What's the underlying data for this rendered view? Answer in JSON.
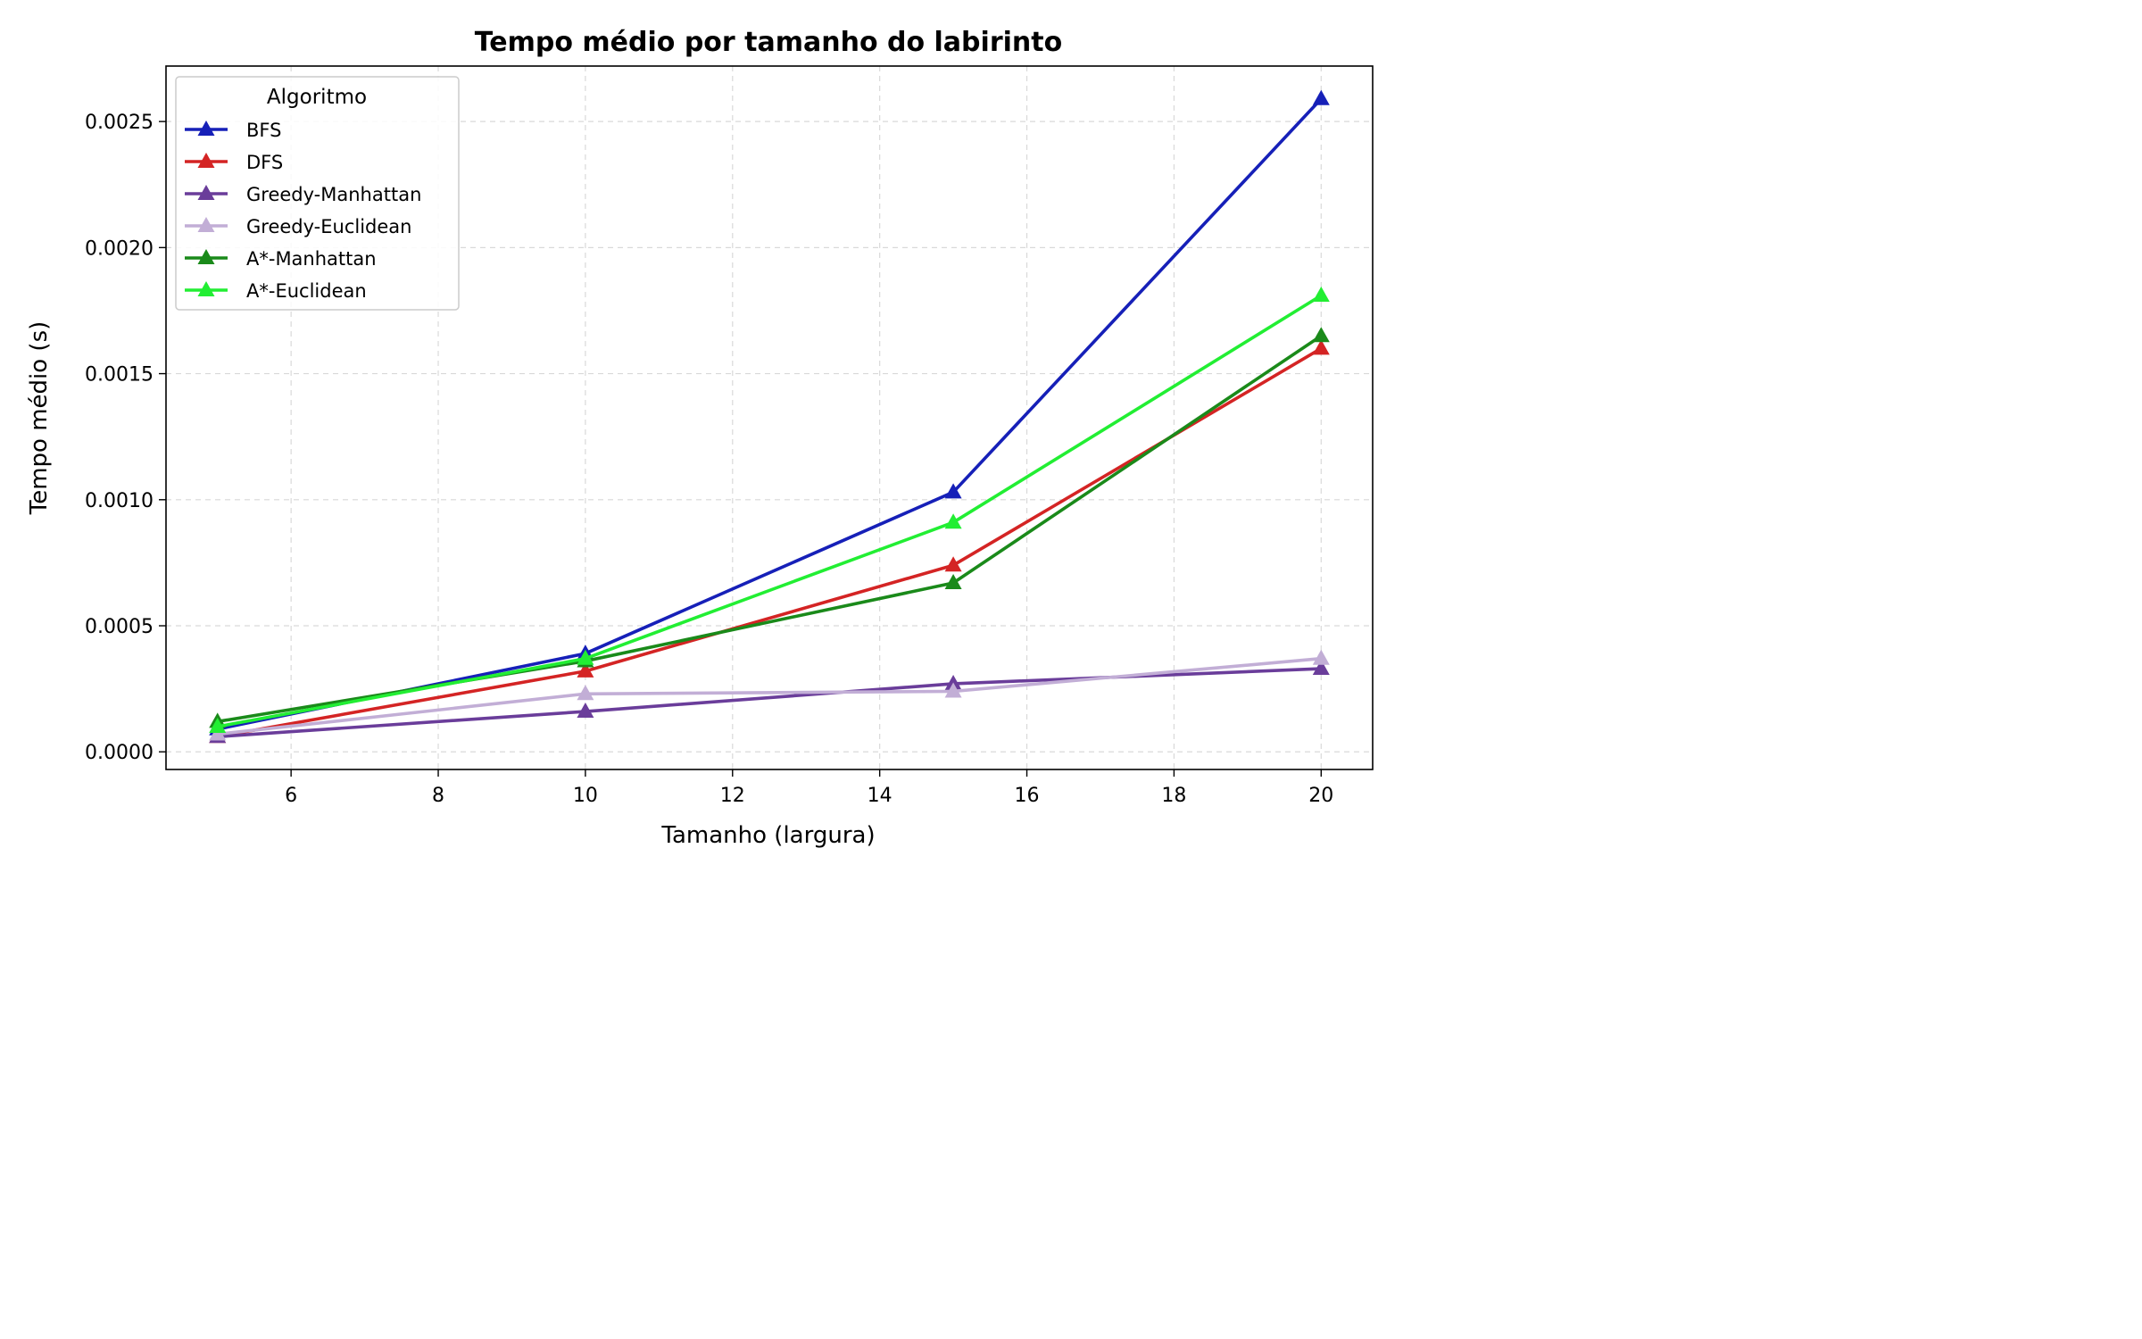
{
  "chart_data": {
    "type": "line",
    "title": "Tempo médio por tamanho do labirinto",
    "xlabel": "Tamanho (largura)",
    "ylabel": "Tempo médio (s)",
    "x": [
      5,
      10,
      15,
      20
    ],
    "xlim": [
      4.3,
      20.7
    ],
    "ylim": [
      -7e-05,
      0.00272
    ],
    "xticks": [
      6,
      8,
      10,
      12,
      14,
      16,
      18,
      20
    ],
    "xtick_labels": [
      "6",
      "8",
      "10",
      "12",
      "14",
      "16",
      "18",
      "20"
    ],
    "yticks": [
      0,
      0.0005,
      0.001,
      0.0015,
      0.002,
      0.0025
    ],
    "ytick_labels": [
      "0.0000",
      "0.0005",
      "0.0010",
      "0.0015",
      "0.0020",
      "0.0025"
    ],
    "grid": true,
    "legend": {
      "title": "Algoritmo",
      "position": "top-left"
    },
    "series": [
      {
        "name": "BFS",
        "color": "#1620b8",
        "values": [
          9e-05,
          0.00039,
          0.00103,
          0.00259
        ]
      },
      {
        "name": "DFS",
        "color": "#d42424",
        "values": [
          6e-05,
          0.00032,
          0.00074,
          0.0016
        ]
      },
      {
        "name": "Greedy-Manhattan",
        "color": "#6a3d9a",
        "values": [
          6e-05,
          0.00016,
          0.00027,
          0.00033
        ]
      },
      {
        "name": "Greedy-Euclidean",
        "color": "#c2aed6",
        "values": [
          7e-05,
          0.00023,
          0.00024,
          0.00037
        ]
      },
      {
        "name": "A*-Manhattan",
        "color": "#1a8a1a",
        "values": [
          0.00012,
          0.00036,
          0.00067,
          0.00165
        ]
      },
      {
        "name": "A*-Euclidean",
        "color": "#22ee33",
        "values": [
          0.0001,
          0.00037,
          0.00091,
          0.00181
        ]
      }
    ]
  }
}
